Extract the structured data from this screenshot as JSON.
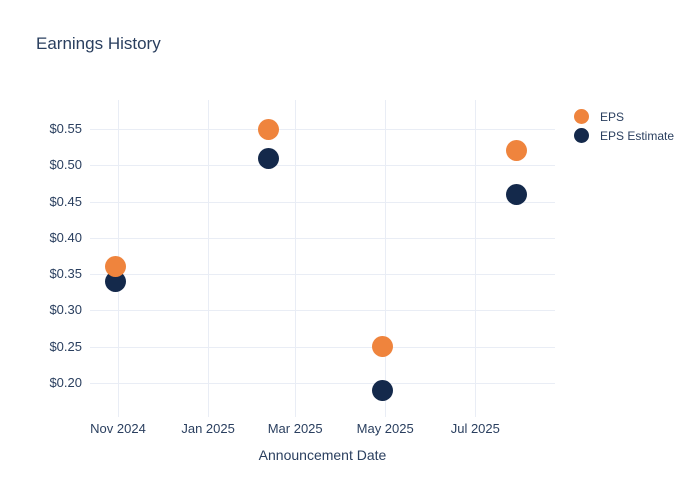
{
  "chart_data": {
    "type": "scatter",
    "title": "Earnings History",
    "xlabel": "Announcement Date",
    "ylabel": "",
    "x": [
      "2024-10-30",
      "2025-02-11",
      "2025-04-29",
      "2025-07-29"
    ],
    "series": [
      {
        "name": "EPS Estimate",
        "color": "#14294b",
        "values": [
          0.34,
          0.51,
          0.19,
          0.46
        ]
      },
      {
        "name": "EPS",
        "color": "#ef843d",
        "values": [
          0.36,
          0.55,
          0.25,
          0.52
        ]
      }
    ],
    "x_ticks": [
      {
        "value": "2024-11-01",
        "label": "Nov 2024"
      },
      {
        "value": "2025-01-01",
        "label": "Jan 2025"
      },
      {
        "value": "2025-03-01",
        "label": "Mar 2025"
      },
      {
        "value": "2025-05-01",
        "label": "May 2025"
      },
      {
        "value": "2025-07-01",
        "label": "Jul 2025"
      }
    ],
    "y_ticks": [
      0.2,
      0.25,
      0.3,
      0.35,
      0.4,
      0.45,
      0.5,
      0.55
    ],
    "y_tick_prefix": "$",
    "xlim": [
      "2024-10-13",
      "2025-08-24"
    ],
    "ylim": [
      0.153,
      0.59
    ],
    "grid": true,
    "legend_position": "outside-top-right",
    "colors": {
      "background": "#ffffff",
      "text": "#2a3f5f",
      "grid": "#e9edf5",
      "eps_estimate": "#14294b",
      "eps": "#ef843d"
    }
  }
}
